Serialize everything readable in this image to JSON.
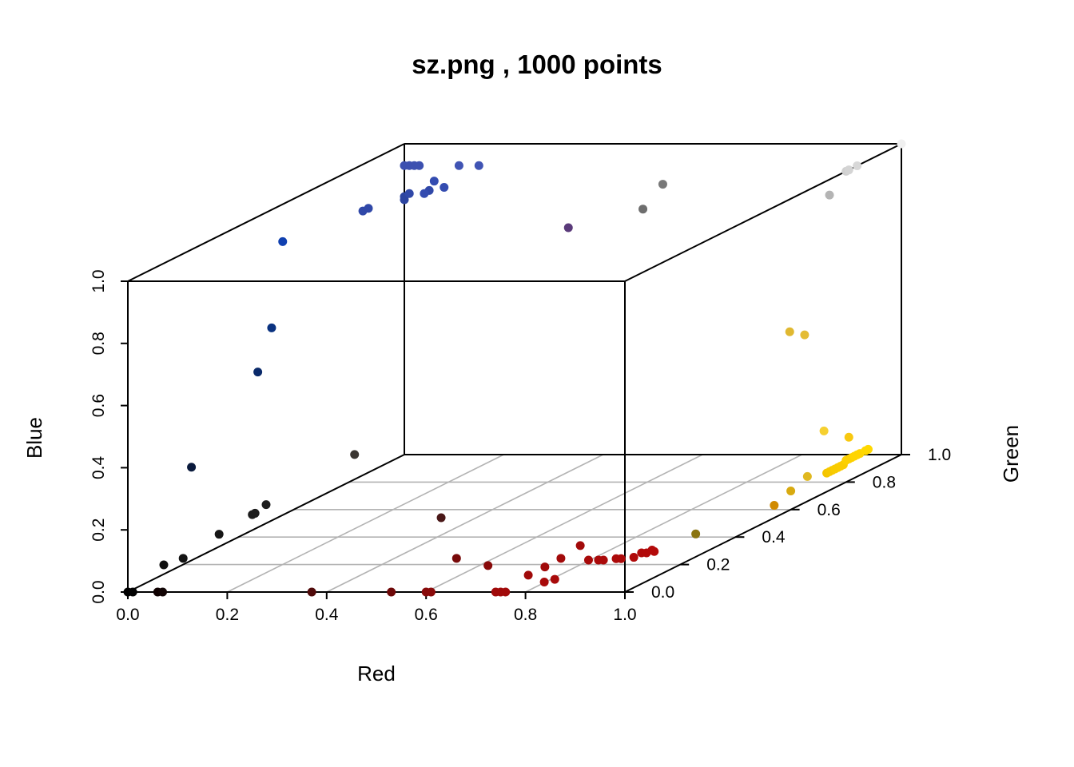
{
  "chart_data": {
    "type": "scatter",
    "projection": "3d",
    "title": "sz.png , 1000 points",
    "xlabel": "Red",
    "ylabel": "Green",
    "zlabel": "Blue",
    "xlim": [
      0,
      1
    ],
    "ylim": [
      0,
      1
    ],
    "zlim": [
      0,
      1
    ],
    "x_ticks": [
      "0.0",
      "0.2",
      "0.4",
      "0.6",
      "0.8",
      "1.0"
    ],
    "y_ticks": [
      "0.0",
      "0.2",
      "0.4",
      "0.6",
      "0.8",
      "1.0"
    ],
    "z_ticks": [
      "0.0",
      "0.2",
      "0.4",
      "0.6",
      "0.8",
      "1.0"
    ],
    "floor_grid": true,
    "points": [
      {
        "x": 0.0,
        "y": 0.0,
        "z": 0.0,
        "color": "#000000"
      },
      {
        "x": 0.01,
        "y": 0.0,
        "z": 0.0,
        "color": "#030303"
      },
      {
        "x": 0.06,
        "y": 0.0,
        "z": 0.0,
        "color": "#0f0000"
      },
      {
        "x": 0.07,
        "y": 0.0,
        "z": 0.0,
        "color": "#120505"
      },
      {
        "x": 0.0,
        "y": 0.13,
        "z": 0.03,
        "color": "#101010"
      },
      {
        "x": 0.0,
        "y": 0.2,
        "z": 0.02,
        "color": "#141414"
      },
      {
        "x": 0.0,
        "y": 0.33,
        "z": 0.04,
        "color": "#161616"
      },
      {
        "x": 0.0,
        "y": 0.45,
        "z": 0.05,
        "color": "#1c1c1c"
      },
      {
        "x": 0.0,
        "y": 0.46,
        "z": 0.05,
        "color": "#1c1c1c"
      },
      {
        "x": 0.0,
        "y": 0.5,
        "z": 0.06,
        "color": "#1e1e1e"
      },
      {
        "x": 0.0,
        "y": 0.82,
        "z": 0.08,
        "color": "#3a3632"
      },
      {
        "x": 0.0,
        "y": 0.23,
        "z": 0.3,
        "color": "#0a1a3c"
      },
      {
        "x": 0.0,
        "y": 0.47,
        "z": 0.5,
        "color": "#0a2a6a"
      },
      {
        "x": 0.0,
        "y": 0.52,
        "z": 0.62,
        "color": "#0a3280"
      },
      {
        "x": 0.0,
        "y": 0.56,
        "z": 0.88,
        "color": "#1040b0"
      },
      {
        "x": 0.0,
        "y": 0.85,
        "z": 0.85,
        "color": "#3048a8"
      },
      {
        "x": 0.0,
        "y": 0.87,
        "z": 0.85,
        "color": "#3048a8"
      },
      {
        "x": 0.0,
        "y": 1.0,
        "z": 0.82,
        "color": "#2c44a0"
      },
      {
        "x": 0.0,
        "y": 1.0,
        "z": 0.83,
        "color": "#2c44a0"
      },
      {
        "x": 0.01,
        "y": 1.0,
        "z": 0.84,
        "color": "#3048a8"
      },
      {
        "x": 0.05,
        "y": 1.0,
        "z": 0.85,
        "color": "#3048a8"
      },
      {
        "x": 0.06,
        "y": 1.0,
        "z": 0.88,
        "color": "#344cb0"
      },
      {
        "x": 0.08,
        "y": 1.0,
        "z": 0.86,
        "color": "#344cb0"
      },
      {
        "x": 0.04,
        "y": 1.0,
        "z": 0.84,
        "color": "#344cb0"
      },
      {
        "x": 0.0,
        "y": 1.0,
        "z": 0.93,
        "color": "#3c50b0"
      },
      {
        "x": 0.01,
        "y": 1.0,
        "z": 0.93,
        "color": "#3c50b0"
      },
      {
        "x": 0.02,
        "y": 1.0,
        "z": 0.93,
        "color": "#3c50b0"
      },
      {
        "x": 0.03,
        "y": 1.0,
        "z": 0.93,
        "color": "#3c50b0"
      },
      {
        "x": 0.11,
        "y": 1.0,
        "z": 0.93,
        "color": "#4054b4"
      },
      {
        "x": 0.15,
        "y": 1.0,
        "z": 0.93,
        "color": "#4054b4"
      },
      {
        "x": 0.33,
        "y": 1.0,
        "z": 0.73,
        "color": "#5a3a7a"
      },
      {
        "x": 0.48,
        "y": 1.0,
        "z": 0.79,
        "color": "#6e6e6e"
      },
      {
        "x": 0.52,
        "y": 1.0,
        "z": 0.87,
        "color": "#787878"
      },
      {
        "x": 0.37,
        "y": 0.0,
        "z": 0.0,
        "color": "#500a0a"
      },
      {
        "x": 0.38,
        "y": 0.45,
        "z": 0.04,
        "color": "#4a1818"
      },
      {
        "x": 0.53,
        "y": 0.0,
        "z": 0.0,
        "color": "#6e0808"
      },
      {
        "x": 0.6,
        "y": 0.0,
        "z": 0.0,
        "color": "#880a0a"
      },
      {
        "x": 0.61,
        "y": 0.0,
        "z": 0.0,
        "color": "#8a0a0a"
      },
      {
        "x": 0.55,
        "y": 0.2,
        "z": 0.02,
        "color": "#780a0a"
      },
      {
        "x": 0.63,
        "y": 0.17,
        "z": 0.01,
        "color": "#880a0a"
      },
      {
        "x": 0.74,
        "y": 0.0,
        "z": 0.0,
        "color": "#a00a0a"
      },
      {
        "x": 0.75,
        "y": 0.0,
        "z": 0.0,
        "color": "#a00a0a"
      },
      {
        "x": 0.76,
        "y": 0.0,
        "z": 0.0,
        "color": "#a20a0a"
      },
      {
        "x": 0.75,
        "y": 0.1,
        "z": 0.01,
        "color": "#a00a0a"
      },
      {
        "x": 0.75,
        "y": 0.16,
        "z": 0.01,
        "color": "#a00a0a"
      },
      {
        "x": 0.76,
        "y": 0.2,
        "z": 0.02,
        "color": "#a20a0a"
      },
      {
        "x": 0.76,
        "y": 0.27,
        "z": 0.03,
        "color": "#a20a0a"
      },
      {
        "x": 0.81,
        "y": 0.05,
        "z": 0.01,
        "color": "#a80a0a"
      },
      {
        "x": 0.82,
        "y": 0.07,
        "z": 0.01,
        "color": "#a80a0a"
      },
      {
        "x": 0.81,
        "y": 0.21,
        "z": 0.01,
        "color": "#a80a0a"
      },
      {
        "x": 0.83,
        "y": 0.21,
        "z": 0.01,
        "color": "#aa0a0a"
      },
      {
        "x": 0.84,
        "y": 0.21,
        "z": 0.01,
        "color": "#aa0a0a"
      },
      {
        "x": 0.86,
        "y": 0.22,
        "z": 0.01,
        "color": "#ac0a0a"
      },
      {
        "x": 0.87,
        "y": 0.22,
        "z": 0.01,
        "color": "#ac0a0a"
      },
      {
        "x": 0.89,
        "y": 0.23,
        "z": 0.01,
        "color": "#b00a0a"
      },
      {
        "x": 0.9,
        "y": 0.24,
        "z": 0.02,
        "color": "#b00a0a"
      },
      {
        "x": 0.91,
        "y": 0.24,
        "z": 0.02,
        "color": "#b20a0a"
      },
      {
        "x": 0.91,
        "y": 0.26,
        "z": 0.02,
        "color": "#b20a0a"
      },
      {
        "x": 0.92,
        "y": 0.25,
        "z": 0.02,
        "color": "#b40a0a"
      },
      {
        "x": 0.92,
        "y": 0.4,
        "z": 0.01,
        "color": "#8a7410"
      },
      {
        "x": 1.0,
        "y": 0.54,
        "z": 0.04,
        "color": "#d08a00"
      },
      {
        "x": 1.0,
        "y": 0.6,
        "z": 0.06,
        "color": "#d8aa10"
      },
      {
        "x": 1.0,
        "y": 0.66,
        "z": 0.08,
        "color": "#e0b820"
      },
      {
        "x": 1.0,
        "y": 0.73,
        "z": 0.06,
        "color": "#f4c400"
      },
      {
        "x": 1.0,
        "y": 0.74,
        "z": 0.06,
        "color": "#f6c800"
      },
      {
        "x": 1.0,
        "y": 0.75,
        "z": 0.06,
        "color": "#f6c800"
      },
      {
        "x": 1.0,
        "y": 0.76,
        "z": 0.06,
        "color": "#f8cc00"
      },
      {
        "x": 1.0,
        "y": 0.77,
        "z": 0.06,
        "color": "#f8cc00"
      },
      {
        "x": 1.0,
        "y": 0.78,
        "z": 0.06,
        "color": "#facc00"
      },
      {
        "x": 1.0,
        "y": 0.79,
        "z": 0.06,
        "color": "#facc00"
      },
      {
        "x": 1.0,
        "y": 0.8,
        "z": 0.07,
        "color": "#fcd000"
      },
      {
        "x": 1.0,
        "y": 0.81,
        "z": 0.07,
        "color": "#fcd000"
      },
      {
        "x": 1.0,
        "y": 0.82,
        "z": 0.07,
        "color": "#fcd000"
      },
      {
        "x": 1.0,
        "y": 0.83,
        "z": 0.07,
        "color": "#fed400"
      },
      {
        "x": 1.0,
        "y": 0.84,
        "z": 0.07,
        "color": "#fed400"
      },
      {
        "x": 1.0,
        "y": 0.85,
        "z": 0.07,
        "color": "#ffd400"
      },
      {
        "x": 1.0,
        "y": 0.87,
        "z": 0.07,
        "color": "#ffd800"
      },
      {
        "x": 1.0,
        "y": 0.88,
        "z": 0.07,
        "color": "#ffd800"
      },
      {
        "x": 1.0,
        "y": 0.81,
        "z": 0.14,
        "color": "#f8c810"
      },
      {
        "x": 1.0,
        "y": 0.72,
        "z": 0.2,
        "color": "#f6d030"
      },
      {
        "x": 0.97,
        "y": 0.65,
        "z": 0.55,
        "color": "#e0b830"
      },
      {
        "x": 1.0,
        "y": 0.65,
        "z": 0.54,
        "color": "#e4bc34"
      },
      {
        "x": 1.0,
        "y": 0.74,
        "z": 0.95,
        "color": "#b4b4b4"
      },
      {
        "x": 1.0,
        "y": 0.8,
        "z": 1.0,
        "color": "#d0d0d0"
      },
      {
        "x": 1.0,
        "y": 0.81,
        "z": 1.0,
        "color": "#d4d4d4"
      },
      {
        "x": 1.0,
        "y": 0.84,
        "z": 1.0,
        "color": "#d8d8d8"
      },
      {
        "x": 1.0,
        "y": 1.0,
        "z": 1.0,
        "color": "#f0f0f0"
      }
    ]
  }
}
